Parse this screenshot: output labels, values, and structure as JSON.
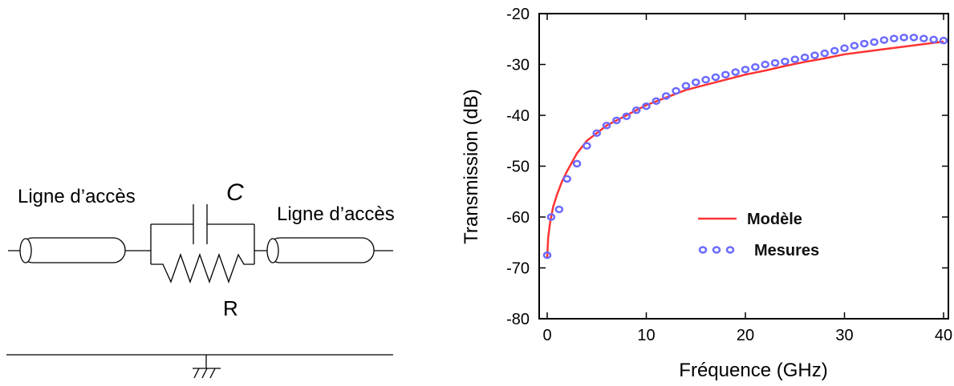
{
  "circuit": {
    "left_label": "Ligne d’accès",
    "right_label": "Ligne d’accès",
    "capacitor_label": "C",
    "resistor_label": "R"
  },
  "chart_data": {
    "type": "line",
    "title": "",
    "xlabel": "Fréquence (GHz)",
    "ylabel": "Transmission (dB)",
    "xlim": [
      0,
      40
    ],
    "ylim": [
      -80,
      -20
    ],
    "xticks": [
      "0",
      "10",
      "20",
      "30",
      "40"
    ],
    "yticks": [
      "-20",
      "-30",
      "-40",
      "-50",
      "-60",
      "-70",
      "-80"
    ],
    "grid": false,
    "legend_position": "center-right",
    "series": [
      {
        "name": "Modèle",
        "style": "line",
        "color": "#ff3333",
        "x": [
          0,
          0.1,
          0.3,
          0.6,
          1,
          1.5,
          2,
          3,
          4,
          5,
          6,
          7,
          8,
          9,
          10,
          12,
          14,
          16,
          18,
          20,
          22,
          24,
          26,
          28,
          30,
          32,
          34,
          36,
          38,
          40
        ],
        "y": [
          -68,
          -64,
          -61,
          -58,
          -55.5,
          -53,
          -51,
          -47.5,
          -45,
          -43.5,
          -42,
          -41,
          -40,
          -39,
          -38,
          -36.5,
          -35,
          -34,
          -33,
          -32,
          -31.2,
          -30.3,
          -29.5,
          -28.8,
          -28,
          -27.5,
          -27,
          -26.5,
          -26,
          -25.5
        ]
      },
      {
        "name": "Mesures",
        "style": "markers",
        "color": "#6b6bff",
        "x": [
          0,
          0.4,
          1.2,
          2,
          3,
          4,
          5,
          6,
          7,
          8,
          9,
          10,
          11,
          12,
          13,
          14,
          15,
          16,
          17,
          18,
          19,
          20,
          21,
          22,
          23,
          24,
          25,
          26,
          27,
          28,
          29,
          30,
          31,
          32,
          33,
          34,
          35,
          36,
          37,
          38,
          39,
          40
        ],
        "y": [
          -67.5,
          -60,
          -58.5,
          -52.5,
          -49.5,
          -46,
          -43.5,
          -42,
          -41,
          -40.2,
          -39,
          -38.2,
          -37.2,
          -36.2,
          -35.2,
          -34.2,
          -33.5,
          -33,
          -32.5,
          -32,
          -31.5,
          -31,
          -30.5,
          -30,
          -29.7,
          -29.4,
          -29,
          -28.6,
          -28.2,
          -27.8,
          -27.3,
          -26.8,
          -26.3,
          -25.9,
          -25.6,
          -25.2,
          -24.9,
          -24.7,
          -24.7,
          -24.9,
          -25.1,
          -25.3
        ]
      }
    ]
  }
}
